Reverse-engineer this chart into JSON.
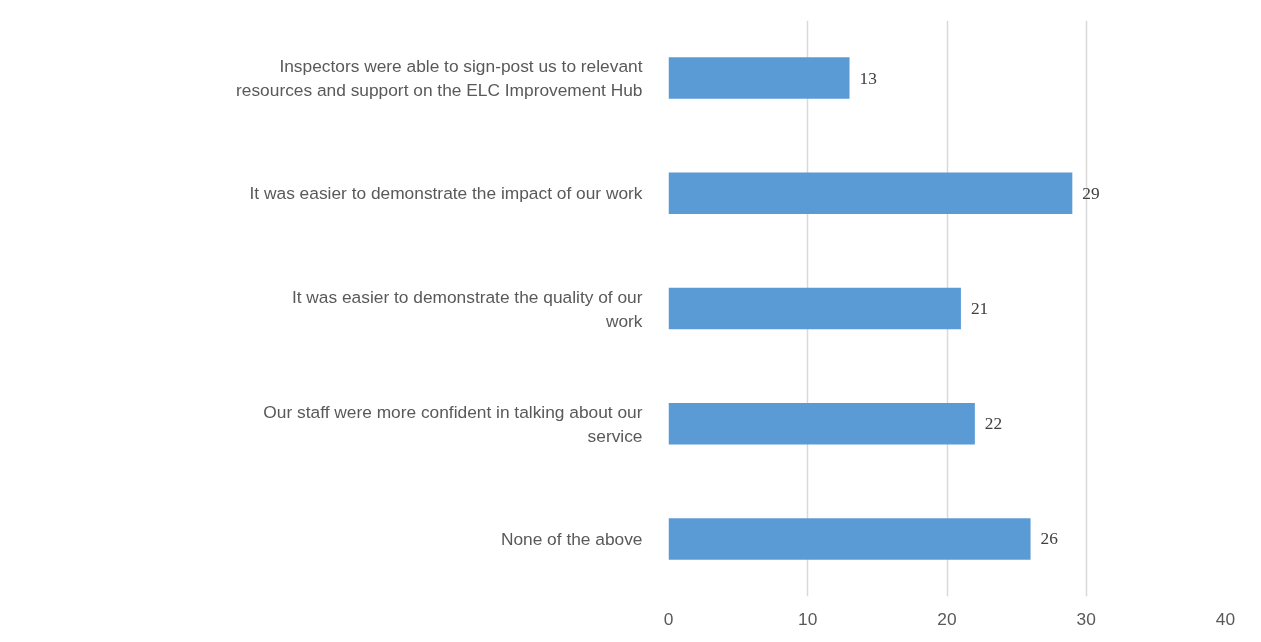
{
  "chart_data": {
    "type": "bar",
    "orientation": "horizontal",
    "categories": [
      "Inspectors were able to sign-post us to relevant resources and support on the ELC Improvement Hub",
      "It was easier to demonstrate the impact of our work",
      "It was easier to demonstrate the quality of our work",
      "Our staff were more confident in talking about our service",
      "None of the above"
    ],
    "values": [
      13,
      29,
      21,
      22,
      26
    ],
    "color": "#5b9bd5",
    "xlim": [
      0,
      40
    ],
    "xticks": [
      0,
      10,
      20,
      30,
      40
    ],
    "grid": "x",
    "data_labels": true
  }
}
